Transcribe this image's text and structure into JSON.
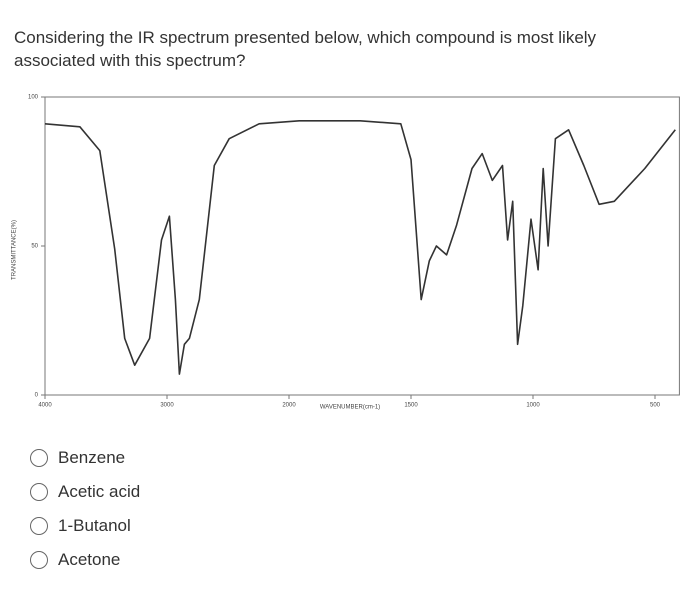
{
  "question": "Considering the IR spectrum presented below, which compound is most likely associated with this spectrum?",
  "chart_data": {
    "type": "line",
    "xlabel": "WAVENUMBER(cm-1)",
    "ylabel": "TRANSMITTANCE(%)",
    "xlim": [
      4000,
      400
    ],
    "xticks": [
      4000,
      3000,
      2000,
      1500,
      1000,
      500
    ],
    "ylim": [
      0,
      100
    ],
    "yticks": [
      0,
      50,
      100
    ],
    "series": [
      {
        "color": "#333333",
        "x": [
          4000,
          3714,
          3551,
          3429,
          3347,
          3265,
          3143,
          3045,
          2980,
          2931,
          2898,
          2857,
          2816,
          2735,
          2612,
          2490,
          2245,
          1958,
          1708,
          1542,
          1500,
          1458,
          1425,
          1396,
          1354,
          1313,
          1250,
          1208,
          1167,
          1125,
          1104,
          1083,
          1063,
          1042,
          1008,
          979,
          958,
          938,
          908,
          854,
          792,
          729,
          667,
          542,
          417
        ],
        "values": [
          91,
          90,
          82,
          49,
          19,
          10,
          19,
          52,
          60,
          32,
          7,
          17,
          19,
          32,
          77,
          86,
          91,
          92,
          92,
          91,
          79,
          32,
          45,
          50,
          47,
          57,
          76,
          81,
          72,
          77,
          52,
          65,
          17,
          30,
          59,
          42,
          76,
          50,
          86,
          89,
          77,
          64,
          65,
          76,
          89
        ]
      }
    ]
  },
  "options": [
    "Benzene",
    "Acetic acid",
    "1-Butanol",
    "Acetone"
  ]
}
